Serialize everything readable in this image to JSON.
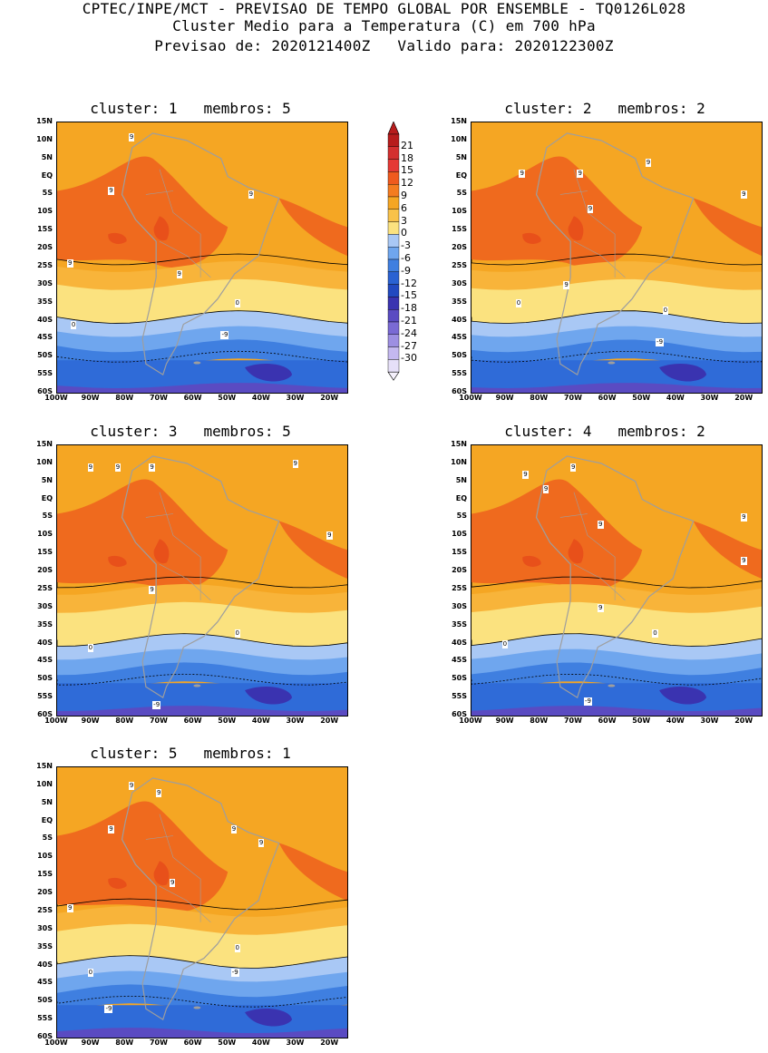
{
  "header": {
    "line1": "CPTEC/INPE/MCT - PREVISAO DE TEMPO GLOBAL POR ENSEMBLE - TQ0126L028",
    "line2": "Cluster Medio para a Temperatura (C) em 700 hPa",
    "line3": "Previsao de: 2020121400Z   Valido para: 2020122300Z"
  },
  "axes": {
    "lat_labels": [
      "15N",
      "10N",
      "5N",
      "EQ",
      "5S",
      "10S",
      "15S",
      "20S",
      "25S",
      "30S",
      "35S",
      "40S",
      "45S",
      "50S",
      "55S",
      "60S"
    ],
    "lon_labels": [
      "100W",
      "90W",
      "80W",
      "70W",
      "60W",
      "50W",
      "40W",
      "30W",
      "20W"
    ]
  },
  "colorbar": {
    "labels": [
      "21",
      "18",
      "15",
      "12",
      "9",
      "6",
      "3",
      "0",
      "-3",
      "-6",
      "-9",
      "-12",
      "-15",
      "-18",
      "-21",
      "-24",
      "-27",
      "-30"
    ],
    "colors": [
      "#b71c1c",
      "#d32f2f",
      "#e53935",
      "#ef5a1e",
      "#f47c20",
      "#f5a623",
      "#f8c24a",
      "#fbe27f",
      "#a9c8f5",
      "#6fa6ee",
      "#3f7fe0",
      "#2a62d2",
      "#2249c0",
      "#3a33b0",
      "#5a4bc2",
      "#7a6ad4",
      "#9d8fe2",
      "#c4b8ef",
      "#e6e0f8"
    ],
    "top_color": "#b71c1c",
    "bottom_color": "#f4f0fb"
  },
  "panels": [
    {
      "title": "cluster: 1   membros: 5",
      "labels": [
        "9",
        "9",
        "9",
        "9",
        "9",
        "0",
        "0",
        "-9"
      ]
    },
    {
      "title": "cluster: 2   membros: 2",
      "labels": [
        "9",
        "9",
        "9",
        "9",
        "9",
        "9",
        "0",
        "0",
        "-9"
      ]
    },
    {
      "title": "cluster: 3   membros: 5",
      "labels": [
        "9",
        "9",
        "9",
        "9",
        "9",
        "9",
        "0",
        "0",
        "-9"
      ]
    },
    {
      "title": "cluster: 4   membros: 2",
      "labels": [
        "9",
        "9",
        "9",
        "9",
        "9",
        "9",
        "9",
        "0",
        "0",
        "-9"
      ]
    },
    {
      "title": "cluster: 5   membros: 1",
      "labels": [
        "9",
        "9",
        "9",
        "9",
        "9",
        "9",
        "9",
        "0",
        "0",
        "-9",
        "-9"
      ]
    }
  ]
}
